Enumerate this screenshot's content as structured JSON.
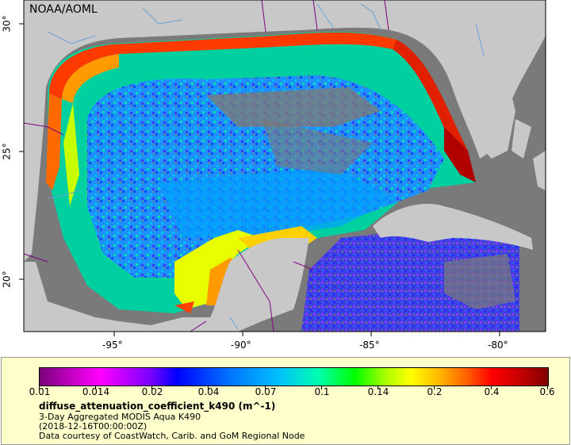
{
  "map": {
    "credit": "NOAA/AOML",
    "lon_ticks": [
      "-95°",
      "-90°",
      "-85°",
      "-80°"
    ],
    "lat_ticks": [
      "30°",
      "25°",
      "20°"
    ],
    "colors": {
      "land": "#c8c8c8",
      "nodata": "#7a7a7a",
      "border": "#800080",
      "river": "#6aa0d8"
    }
  },
  "legend": {
    "tick_labels": [
      "0.01",
      "0.014",
      "0.02",
      "0.04",
      "0.07",
      "0.1",
      "0.14",
      "0.2",
      "0.4",
      "0.6"
    ],
    "variable": "diffuse_attenuation_coefficient_k490 (m^-1)",
    "description": "3-Day Aggregated MODIS Aqua K490",
    "time": "(2018-12-16T00:00:00Z)",
    "credit": "Data courtesy of CoastWatch, Carib. and GoM Regional Node"
  }
}
